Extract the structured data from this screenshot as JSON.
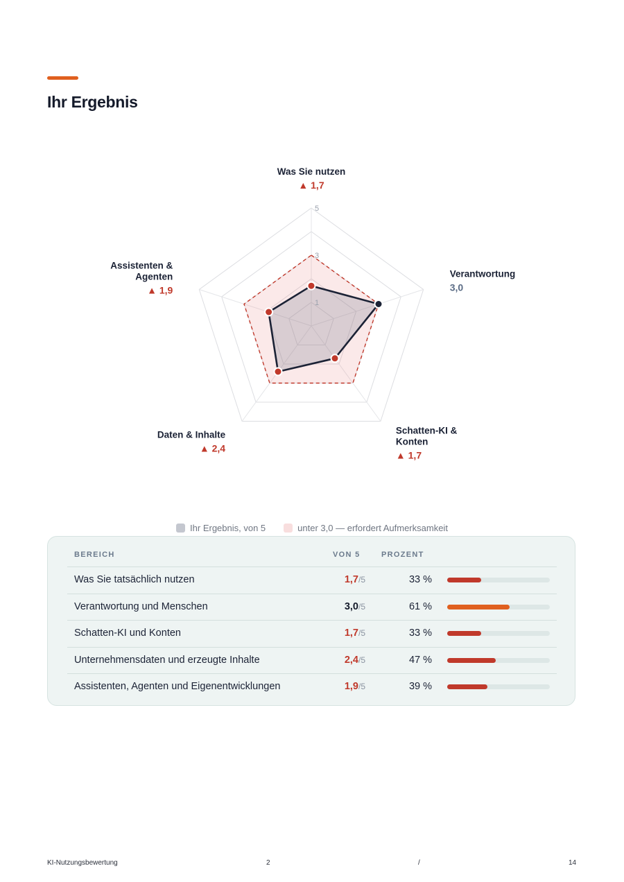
{
  "page": {
    "title": "Ihr Ergebnis"
  },
  "colors": {
    "accent": "#e0601f",
    "attention": "#c0392b",
    "ok_bar": "#e0601f",
    "ok_score": "#5a6b85",
    "ok_table_score": "#141a2a",
    "result_line": "#1b2235"
  },
  "chart_data": {
    "type": "radar",
    "max": 5,
    "ring_labels": [
      "1",
      "3",
      "5"
    ],
    "threshold": 3.0,
    "axes": [
      {
        "label": "Was Sie nutzen",
        "value": 1.7,
        "score_text": "▲ 1,7",
        "attention": true
      },
      {
        "label": "Verantwortung",
        "value": 3.0,
        "score_text": "3,0",
        "attention": false
      },
      {
        "label": "Schatten-KI & Konten",
        "value": 1.7,
        "score_text": "▲ 1,7",
        "attention": true
      },
      {
        "label": "Daten & Inhalte",
        "value": 2.4,
        "score_text": "▲ 2,4",
        "attention": true
      },
      {
        "label": "Assistenten & Agenten",
        "value": 1.9,
        "score_text": "▲ 1,9",
        "attention": true
      }
    ],
    "legend": [
      "Ihr Ergebnis, von 5",
      "unter 3,0 — erfordert Aufmerksamkeit"
    ]
  },
  "table": {
    "headers": {
      "area": "BEREICH",
      "score": "VON 5",
      "percent": "PROZENT"
    },
    "rows": [
      {
        "name": "Was Sie tatsächlich nutzen",
        "score": "1,7",
        "of": "/5",
        "percent": "33 %",
        "fraction": 0.33,
        "attention": true
      },
      {
        "name": "Verantwortung und Menschen",
        "score": "3,0",
        "of": "/5",
        "percent": "61 %",
        "fraction": 0.61,
        "attention": false
      },
      {
        "name": "Schatten-KI und Konten",
        "score": "1,7",
        "of": "/5",
        "percent": "33 %",
        "fraction": 0.33,
        "attention": true
      },
      {
        "name": "Unternehmensdaten und erzeugte Inhalte",
        "score": "2,4",
        "of": "/5",
        "percent": "47 %",
        "fraction": 0.47,
        "attention": true
      },
      {
        "name": "Assistenten, Agenten und Eigenentwicklungen",
        "score": "1,9",
        "of": "/5",
        "percent": "39 %",
        "fraction": 0.39,
        "attention": true
      }
    ]
  },
  "footer": {
    "left": "KI-Nutzungsbewertung",
    "page": "2",
    "separator": "/",
    "total": "14"
  }
}
